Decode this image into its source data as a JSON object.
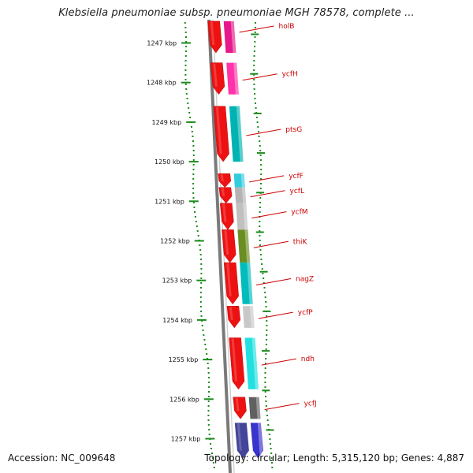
{
  "title": "Klebsiella pneumoniae subsp. pneumoniae MGH 78578, complete ...",
  "footer": {
    "accession": "Accession: NC_009648",
    "topology": "Topology: circular; Length: 5,315,120 bp; Genes: 4,887"
  },
  "kbp_ticks": [
    "1247 kbp",
    "1248 kbp",
    "1249 kbp",
    "1250 kbp",
    "1251 kbp",
    "1252 kbp",
    "1253 kbp",
    "1254 kbp",
    "1255 kbp",
    "1256 kbp",
    "1257 kbp"
  ],
  "genes": [
    {
      "name": "holB",
      "strand": "forward",
      "start_kbp": 1246.45,
      "end_kbp": 1247.25,
      "category_color": "#e6198c"
    },
    {
      "name": "ycfH",
      "strand": "forward",
      "start_kbp": 1247.5,
      "end_kbp": 1248.3,
      "category_color": "#ff33aa"
    },
    {
      "name": "ptsG",
      "strand": "forward",
      "start_kbp": 1248.6,
      "end_kbp": 1250.0,
      "category_color": "#00b3b3"
    },
    {
      "name": "ycfF",
      "strand": "forward",
      "start_kbp": 1250.3,
      "end_kbp": 1250.65,
      "category_color": "#33ccdd"
    },
    {
      "name": "ycfL",
      "strand": "forward",
      "start_kbp": 1250.65,
      "end_kbp": 1251.05,
      "category_color": "#b4b4b4"
    },
    {
      "name": "ycfM",
      "strand": "forward",
      "start_kbp": 1251.05,
      "end_kbp": 1251.72,
      "category_color": "#c0c0c0"
    },
    {
      "name": "thiK",
      "strand": "forward",
      "start_kbp": 1251.72,
      "end_kbp": 1252.55,
      "category_color": "#6b8e23"
    },
    {
      "name": "nagZ",
      "strand": "forward",
      "start_kbp": 1252.55,
      "end_kbp": 1253.6,
      "category_color": "#00bcbc"
    },
    {
      "name": "ycfP",
      "strand": "forward",
      "start_kbp": 1253.65,
      "end_kbp": 1254.2,
      "category_color": "#c8c8c8"
    },
    {
      "name": "ndh",
      "strand": "forward",
      "start_kbp": 1254.45,
      "end_kbp": 1255.75,
      "category_color": "#22e0e0"
    },
    {
      "name": "ycfJ",
      "strand": "forward",
      "start_kbp": 1255.95,
      "end_kbp": 1256.5,
      "category_color": "#606060"
    },
    {
      "name": "",
      "strand": "forward",
      "start_kbp": 1256.6,
      "end_kbp": 1257.5,
      "category_color": "#3a33cc"
    }
  ],
  "colors": {
    "forward_strand": "#ee1111",
    "backbone": "#777777",
    "gc_skew_dots": "#1a8a1a",
    "label_text": "#cc0000",
    "blue_gene_forward": "#44449a",
    "blue_gene_cat": "#1111dd"
  }
}
